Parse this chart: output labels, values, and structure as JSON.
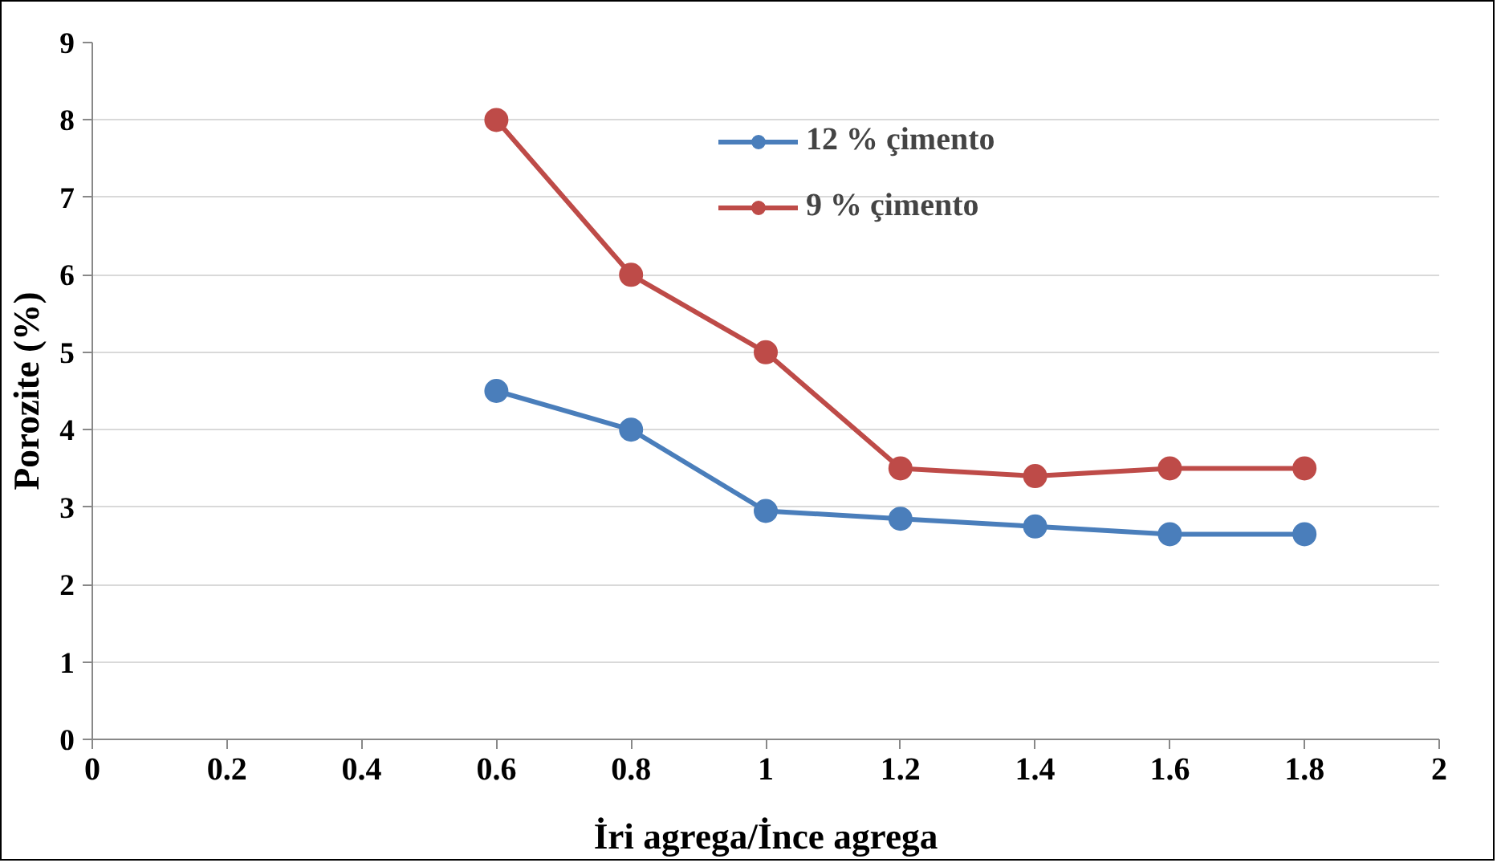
{
  "chart_data": {
    "type": "line",
    "xlabel": "İri agrega/İnce agrega",
    "ylabel": "Porozite (%)",
    "x": [
      0.6,
      0.8,
      1,
      1.2,
      1.4,
      1.6,
      1.8
    ],
    "series": [
      {
        "name": "12 % çimento",
        "color": "#4a7ebb",
        "values": [
          4.5,
          4.0,
          2.95,
          2.85,
          2.75,
          2.65,
          2.65
        ]
      },
      {
        "name": "9 % çimento",
        "color": "#be4b48",
        "values": [
          8.0,
          6.0,
          5.0,
          3.5,
          3.4,
          3.5,
          3.5
        ]
      }
    ],
    "xlim": [
      0,
      2
    ],
    "xticks": [
      0,
      0.2,
      0.4,
      0.6,
      0.8,
      1,
      1.2,
      1.4,
      1.6,
      1.8,
      2
    ],
    "ylim": [
      0,
      9
    ],
    "yticks": [
      0,
      1,
      2,
      3,
      4,
      5,
      6,
      7,
      8,
      9
    ],
    "grid": "y",
    "legend": "top right",
    "marker": "circle",
    "line_style": "solid"
  }
}
